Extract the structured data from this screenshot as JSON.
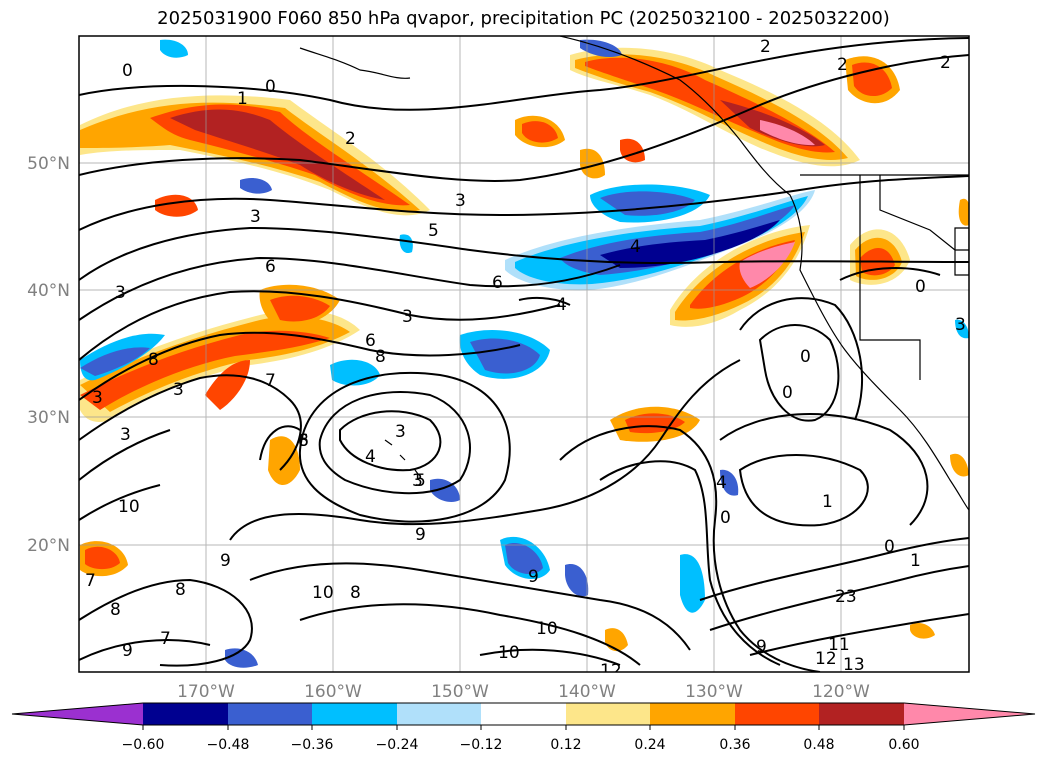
{
  "title": "2025031900 F060 850 hPa qvapor, precipitation PC (2025032100 - 2025032200)",
  "map": {
    "lat_ticks": [
      "50°N",
      "40°N",
      "30°N",
      "20°N"
    ],
    "lon_ticks": [
      "170°W",
      "160°W",
      "150°W",
      "140°W",
      "130°W",
      "120°W"
    ],
    "contour_labels": [
      "0",
      "1",
      "0",
      "2",
      "2",
      "2",
      "3",
      "3",
      "3",
      "5",
      "6",
      "6",
      "4",
      "4",
      "3",
      "3",
      "6",
      "8",
      "7",
      "3",
      "8",
      "3",
      "3",
      "3",
      "4",
      "5",
      "10",
      "9",
      "8",
      "8",
      "10",
      "9",
      "10",
      "10",
      "9",
      "7",
      "8",
      "9",
      "11",
      "12",
      "13",
      "12",
      "23",
      "0",
      "1",
      "1",
      "0",
      "0",
      "0",
      "2",
      "4",
      "7",
      "6",
      "8",
      "3",
      "9",
      "0"
    ]
  },
  "colorbar": {
    "tick_labels": [
      "−0.60",
      "−0.48",
      "−0.36",
      "−0.24",
      "−0.12",
      "0.12",
      "0.24",
      "0.36",
      "0.48",
      "0.60"
    ],
    "colors": [
      "#9b30d0",
      "#000090",
      "#3a5fd0",
      "#00bfff",
      "#b0e0fa",
      "#ffffff",
      "#fde68a",
      "#ffa500",
      "#ff4500",
      "#b22222",
      "#ff88aa",
      "#ff88aa"
    ]
  }
}
